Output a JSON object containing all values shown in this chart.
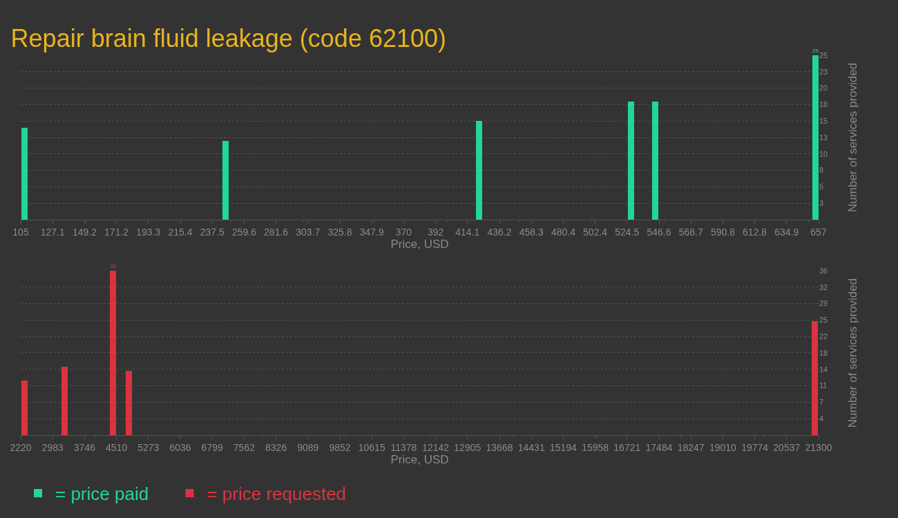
{
  "chart_data": [
    {
      "type": "bar",
      "title": "Repair brain fluid leakage (code 62100)",
      "xlabel": "Price, USD",
      "ylabel": "Number of services provided",
      "x": [
        107.6,
        246.5,
        421.9,
        527.3,
        543.9,
        654.7
      ],
      "series": [
        {
          "name": "= price paid",
          "color": "#21d697",
          "values": [
            14,
            12,
            15,
            18,
            18,
            25
          ],
          "value_labels": [
            null,
            null,
            null,
            null,
            null,
            "25"
          ]
        }
      ],
      "xlim": [
        105,
        657
      ],
      "xticks": [
        105,
        {
          "value": 127.08,
          "label": "127.1"
        },
        {
          "value": 149.16,
          "label": "149.2"
        },
        {
          "value": 171.24,
          "label": "171.2"
        },
        {
          "value": 193.32,
          "label": "193.3"
        },
        215.4,
        {
          "value": 237.48,
          "label": "237.5"
        },
        {
          "value": 259.56,
          "label": "259.6"
        },
        {
          "value": 281.64,
          "label": "281.6"
        },
        {
          "value": 303.72,
          "label": "303.7"
        },
        325.8,
        {
          "value": 347.88,
          "label": "347.9"
        },
        {
          "value": 369.96,
          "label": "370"
        },
        {
          "value": 392.04,
          "label": "392"
        },
        {
          "value": 414.12,
          "label": "414.1"
        },
        436.2,
        {
          "value": 458.28,
          "label": "458.3"
        },
        {
          "value": 480.36,
          "label": "480.4"
        },
        {
          "value": 502.44,
          "label": "502.4"
        },
        {
          "value": 524.52,
          "label": "524.5"
        },
        546.6,
        {
          "value": 568.68,
          "label": "568.7"
        },
        {
          "value": 590.76,
          "label": "590.8"
        },
        {
          "value": 612.84,
          "label": "612.8"
        },
        {
          "value": 634.92,
          "label": "634.9"
        },
        657
      ],
      "ylim": [
        0,
        25
      ],
      "yticks": [
        {
          "value": 2.5,
          "label": "3"
        },
        5,
        {
          "value": 7.5,
          "label": "8"
        },
        10,
        {
          "value": 12.5,
          "label": "13"
        },
        15,
        {
          "value": 17.5,
          "label": "18"
        },
        20,
        {
          "value": 22.5,
          "label": "23"
        },
        25
      ],
      "grid": "y",
      "legend": "bottom left"
    },
    {
      "type": "bar",
      "xlabel": "Price, USD",
      "ylabel": "Number of services provided",
      "x": [
        2310,
        3272,
        4422,
        4800,
        21217
      ],
      "series": [
        {
          "name": "= price requested",
          "color": "#dc3340",
          "values": [
            12,
            15,
            36,
            14,
            25
          ],
          "value_labels": [
            null,
            null,
            "36",
            null,
            null
          ]
        }
      ],
      "xlim": [
        2220,
        21300
      ],
      "xticks": [
        2220,
        {
          "value": 2983.2,
          "label": "2983"
        },
        {
          "value": 3746.4,
          "label": "3746"
        },
        {
          "value": 4509.6,
          "label": "4510"
        },
        {
          "value": 5272.8,
          "label": "5273"
        },
        6036,
        {
          "value": 6799.2,
          "label": "6799"
        },
        {
          "value": 7562.4,
          "label": "7562"
        },
        {
          "value": 8325.6,
          "label": "8326"
        },
        {
          "value": 9088.8,
          "label": "9089"
        },
        9852,
        {
          "value": 10615.2,
          "label": "10615"
        },
        {
          "value": 11378.4,
          "label": "11378"
        },
        {
          "value": 12141.6,
          "label": "12142"
        },
        {
          "value": 12904.8,
          "label": "12905"
        },
        13668,
        {
          "value": 14431.2,
          "label": "14431"
        },
        {
          "value": 15194.4,
          "label": "15194"
        },
        {
          "value": 15957.6,
          "label": "15958"
        },
        {
          "value": 16720.8,
          "label": "16721"
        },
        17484,
        {
          "value": 18247.2,
          "label": "18247"
        },
        {
          "value": 19010.4,
          "label": "19010"
        },
        {
          "value": 19773.6,
          "label": "19774"
        },
        {
          "value": 20536.8,
          "label": "20537"
        },
        21300
      ],
      "ylim": [
        0,
        36
      ],
      "yticks": [
        {
          "value": 3.6,
          "label": "4"
        },
        {
          "value": 7.2,
          "label": "7"
        },
        {
          "value": 10.8,
          "label": "11"
        },
        {
          "value": 14.4,
          "label": "14"
        },
        18,
        {
          "value": 21.6,
          "label": "22"
        },
        {
          "value": 25.2,
          "label": "25"
        },
        {
          "value": 28.8,
          "label": "29"
        },
        {
          "value": 32.4,
          "label": "32"
        },
        36
      ],
      "grid": "y",
      "legend": "bottom left"
    }
  ]
}
